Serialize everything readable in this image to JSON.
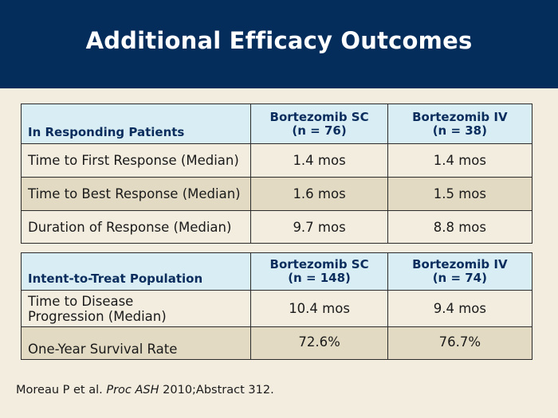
{
  "title": "Additional Efficacy Outcomes",
  "table1": {
    "row_header": "In Responding Patients",
    "col1": {
      "name": "Bortezomib SC",
      "n": "(n = 76)"
    },
    "col2": {
      "name": "Bortezomib IV",
      "n": "(n = 38)"
    },
    "rows": [
      {
        "label": "Time to First Response (Median)",
        "sc": "1.4 mos",
        "iv": "1.4 mos"
      },
      {
        "label": "Time to Best Response (Median)",
        "sc": "1.6 mos",
        "iv": "1.5 mos"
      },
      {
        "label": "Duration of Response (Median)",
        "sc": "9.7 mos",
        "iv": "8.8 mos"
      }
    ]
  },
  "table2": {
    "row_header": "Intent-to-Treat Population",
    "col1": {
      "name": "Bortezomib SC",
      "n": "(n = 148)"
    },
    "col2": {
      "name": "Bortezomib IV",
      "n": "(n = 74)"
    },
    "rows": [
      {
        "label": "Time to Disease Progression (Median)",
        "sc": "10.4 mos",
        "iv": "9.4 mos"
      },
      {
        "label": "One-Year Survival Rate",
        "sc": "72.6%",
        "iv": "76.7%"
      }
    ]
  },
  "reference": {
    "authors": "Moreau P et al. ",
    "journal": "Proc ASH",
    "rest": " 2010;Abstract 312."
  },
  "colors": {
    "header_bg": "#052d5c",
    "table_header_bg": "#d9eef4",
    "table_header_text": "#0a2d5e",
    "row_light": "#f3ede0",
    "row_dark": "#e2dac3"
  }
}
